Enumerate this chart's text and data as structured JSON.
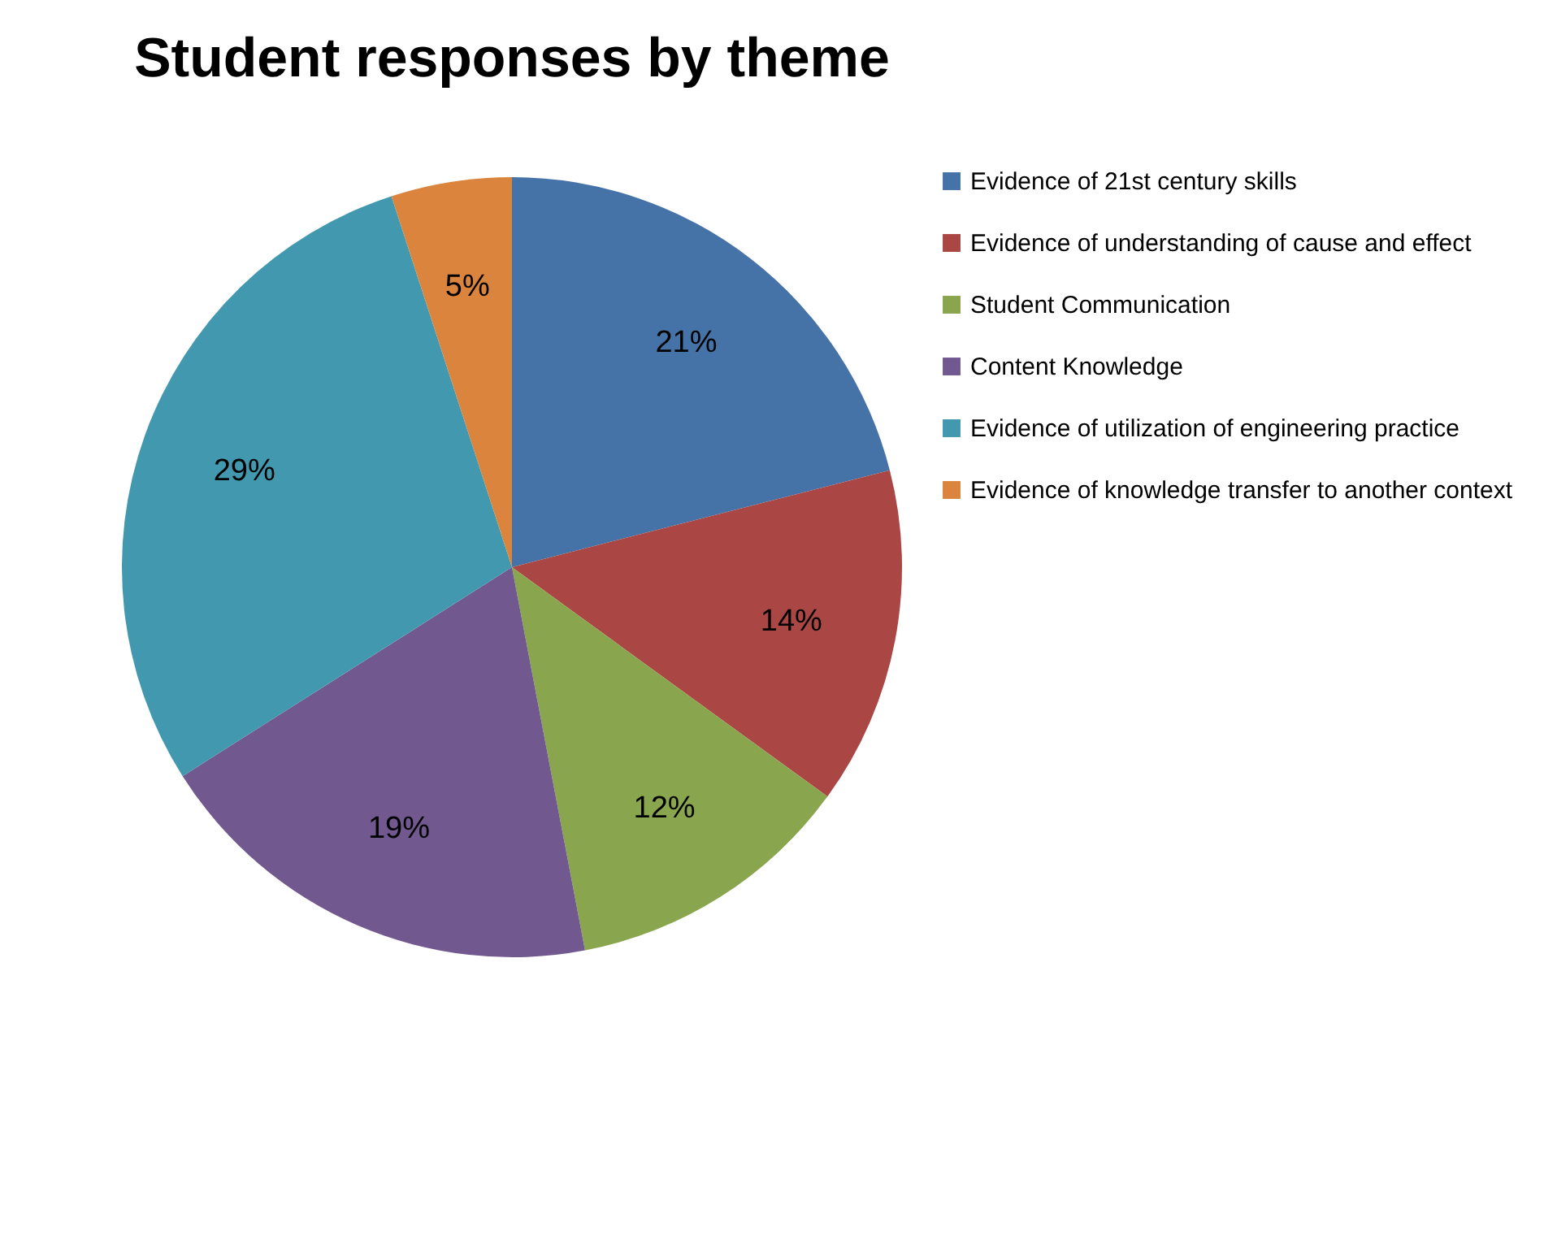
{
  "chart_data": {
    "type": "pie",
    "title": "Student responses by theme",
    "categories": [
      "Evidence of 21st century skills",
      "Evidence of understanding of cause and effect",
      "Student Communication",
      "Content Knowledge",
      "Evidence of utilization of engineering practice",
      "Evidence of knowledge transfer to another context"
    ],
    "values": [
      21,
      14,
      12,
      19,
      29,
      5
    ],
    "colors": [
      "#4572a7",
      "#aa4643",
      "#89a54e",
      "#71588f",
      "#4198af",
      "#db843d"
    ],
    "value_labels": [
      "21%",
      "14%",
      "12%",
      "19%",
      "29%",
      "5%"
    ],
    "legend": "right"
  }
}
